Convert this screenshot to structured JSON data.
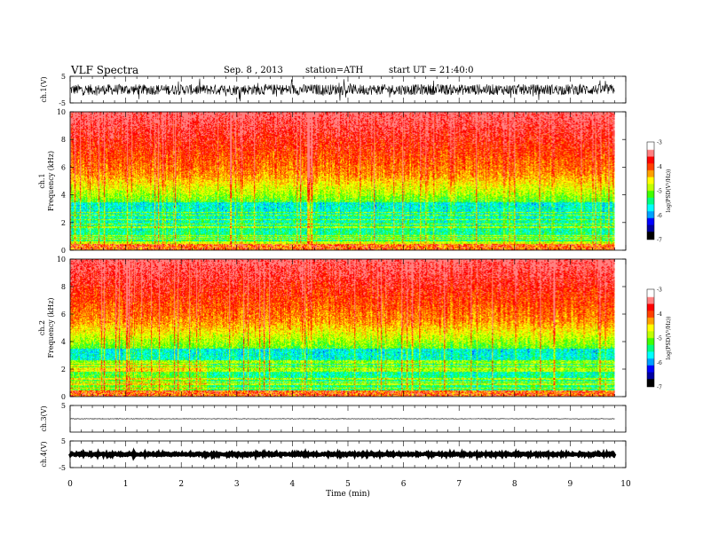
{
  "header": {
    "title": "VLF Spectra",
    "date": "Sep. 8 , 2013",
    "station": "station=ATH",
    "start": "start UT = 21:40:0"
  },
  "chart_data": [
    {
      "panel": "ch1-waveform",
      "type": "line",
      "ylabel": "ch.1(V)",
      "ylim": [
        -5,
        5
      ],
      "yticks": [
        "5",
        "-5"
      ],
      "x_range_min": [
        0,
        9.8
      ],
      "description_values": {
        "center": 0,
        "amplitude_typical": 2.0
      },
      "line_color": "#000000"
    },
    {
      "panel": "ch1-spectrogram",
      "type": "heatmap",
      "ylabel": "ch.1 Frequency (kHz)",
      "ylim": [
        0,
        10
      ],
      "yticks": [
        "0",
        "2",
        "4",
        "6",
        "8",
        "10"
      ],
      "x_range_min": [
        0,
        9.8
      ],
      "colorbar": {
        "label": "log(PSD(V²/Hz))",
        "ticks": [
          "-3",
          "-4",
          "-5",
          "-6",
          "-7"
        ],
        "range": [
          -7,
          -3
        ]
      }
    },
    {
      "panel": "ch2-spectrogram",
      "type": "heatmap",
      "ylabel": "ch.2 Frequency (kHz)",
      "ylim": [
        0,
        10
      ],
      "yticks": [
        "0",
        "2",
        "4",
        "6",
        "8",
        "10"
      ],
      "x_range_min": [
        0,
        9.8
      ],
      "colorbar": {
        "label": "log(PSD(V²/Hz))",
        "ticks": [
          "-3",
          "-4",
          "-5",
          "-6",
          "-7"
        ],
        "range": [
          -7,
          -3
        ]
      }
    },
    {
      "panel": "ch3-waveform",
      "type": "line",
      "ylabel": "ch.3(V)",
      "ylim": [
        -5,
        5
      ],
      "yticks": [
        "5"
      ],
      "x_range_min": [
        0,
        9.8
      ],
      "description_values": {
        "center": 0,
        "amplitude_typical": 0.1
      }
    },
    {
      "panel": "ch4-waveform",
      "type": "line",
      "ylabel": "ch.4(V)",
      "ylim": [
        -5,
        5
      ],
      "yticks": [
        "5",
        "-5"
      ],
      "x_range_min": [
        0,
        9.8
      ],
      "description_values": {
        "center": 0,
        "amplitude_typical": 0.3
      }
    }
  ],
  "xaxis": {
    "label": "Time (min)",
    "ticks": [
      "0",
      "1",
      "2",
      "3",
      "4",
      "5",
      "6",
      "7",
      "8",
      "9",
      "10"
    ],
    "range": [
      0,
      10
    ]
  },
  "colors": {
    "colormap": [
      "#000000",
      "#0000a0",
      "#0000ff",
      "#00a0ff",
      "#00ffff",
      "#00ff80",
      "#40ff00",
      "#c0ff00",
      "#ffff00",
      "#ffa000",
      "#ff4000",
      "#ff0000",
      "#ff8080",
      "#ffffff"
    ]
  }
}
